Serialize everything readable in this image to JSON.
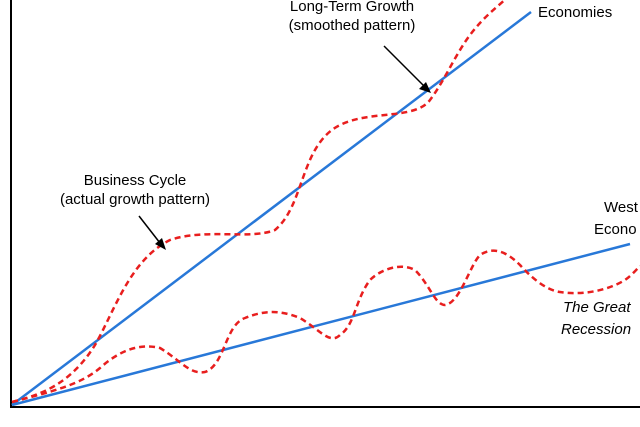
{
  "labels": {
    "long_term_growth": "Long-Term  Growth",
    "smoothed_pattern": "(smoothed pattern)",
    "economies_top": "Economies",
    "business_cycle": "Business Cycle",
    "actual_growth": "(actual growth pattern)",
    "west": "West",
    "econo": "Econo",
    "the_great": "The Great",
    "recession": "Recession"
  },
  "colors": {
    "trend_line": "#2878d8",
    "cycle_line": "#e81e1e",
    "axis": "#000000"
  }
}
